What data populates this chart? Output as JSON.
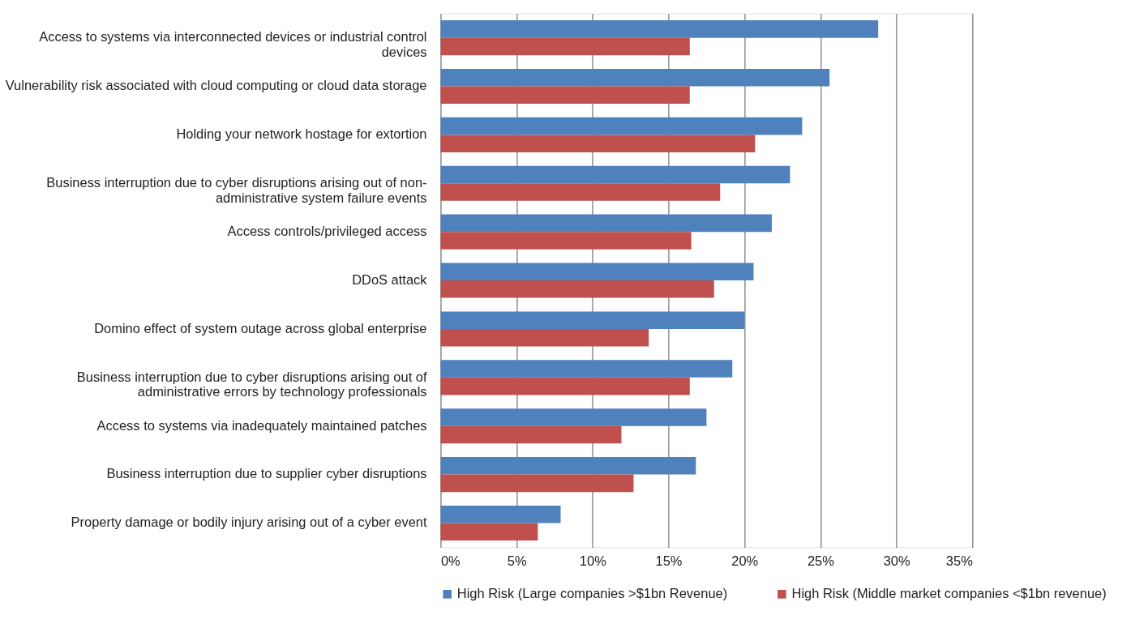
{
  "chart_data": {
    "type": "bar",
    "orientation": "horizontal",
    "categories": [
      "Access to systems via interconnected devices or industrial control devices",
      "Vulnerability risk associated with cloud computing or cloud data storage",
      "Holding your network hostage for extortion",
      "Business interruption due to cyber disruptions arising out of non-administrative system failure events",
      "Access controls/privileged access",
      "DDoS attack",
      "Domino effect of system outage across global enterprise",
      "Business interruption due to cyber disruptions arising out of administrative errors by technology professionals",
      "Access to systems via inadequately maintained patches",
      "Business interruption due to supplier cyber disruptions",
      "Property damage or bodily injury arising out of a cyber event"
    ],
    "series": [
      {
        "name": "High Risk (Large companies >$1bn Revenue)",
        "color": "#4f81bd",
        "values": [
          28.8,
          25.6,
          23.8,
          23.0,
          21.8,
          20.6,
          20.0,
          19.2,
          17.5,
          16.8,
          7.9
        ]
      },
      {
        "name": "High Risk (Middle market companies <$1bn revenue)",
        "color": "#c0504d",
        "values": [
          16.4,
          16.4,
          20.7,
          18.4,
          16.5,
          18.0,
          13.7,
          16.4,
          11.9,
          12.7,
          6.4
        ]
      }
    ],
    "xlim": [
      0,
      35
    ],
    "xticks": [
      {
        "value": 0,
        "label": "0%"
      },
      {
        "value": 5,
        "label": "5%"
      },
      {
        "value": 10,
        "label": "10%"
      },
      {
        "value": 15,
        "label": "15%"
      },
      {
        "value": 20,
        "label": "20%"
      },
      {
        "value": 25,
        "label": "25%"
      },
      {
        "value": 30,
        "label": "30%"
      },
      {
        "value": 35,
        "label": "35%"
      }
    ],
    "grid": "x",
    "legend": "bottom"
  }
}
